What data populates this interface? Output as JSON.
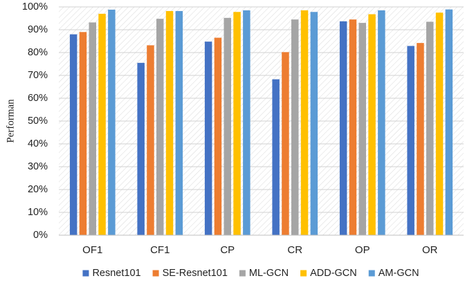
{
  "chart_data": {
    "type": "bar",
    "title": "",
    "xlabel": "",
    "ylabel": "Performan",
    "ylim": [
      0,
      100
    ],
    "yticks": [
      "0%",
      "10%",
      "20%",
      "30%",
      "40%",
      "50%",
      "60%",
      "70%",
      "80%",
      "90%",
      "100%"
    ],
    "categories": [
      "OF1",
      "CF1",
      "CP",
      "CR",
      "OP",
      "OR"
    ],
    "series": [
      {
        "name": "Resnet101",
        "color": "#4472C4",
        "values": [
          88.0,
          75.5,
          84.8,
          68.3,
          93.7,
          82.9
        ]
      },
      {
        "name": "SE-Resnet101",
        "color": "#ED7D31",
        "values": [
          89.0,
          83.2,
          86.5,
          80.2,
          94.5,
          84.2
        ]
      },
      {
        "name": "ML-GCN",
        "color": "#A5A5A5",
        "values": [
          93.2,
          94.8,
          95.2,
          94.5,
          93.0,
          93.5
        ]
      },
      {
        "name": "ADD-GCN",
        "color": "#FFC000",
        "values": [
          97.0,
          98.2,
          97.8,
          98.5,
          96.8,
          97.5
        ]
      },
      {
        "name": "AM-GCN",
        "color": "#5B9BD5",
        "values": [
          98.8,
          98.2,
          98.5,
          97.8,
          98.5,
          98.9
        ]
      }
    ],
    "grid": true,
    "legend_position": "bottom"
  }
}
